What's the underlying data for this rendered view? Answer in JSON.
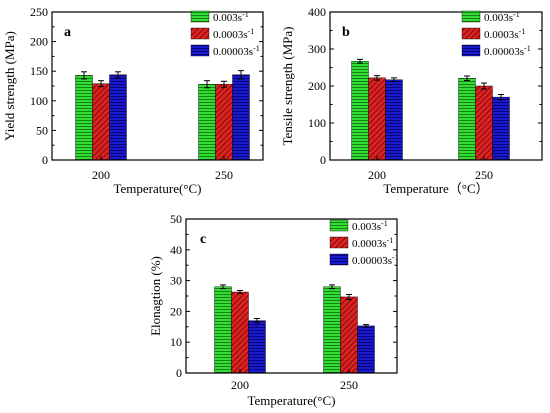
{
  "figure": {
    "legend_swatch_colors": [
      "#33dd33",
      "#dd2222",
      "#1a1acc"
    ],
    "legend_patterns": [
      "horizontal-lines",
      "diagonal-lines",
      "horizontal-lines"
    ]
  },
  "chart_data": [
    {
      "type": "bar",
      "panel_label": "a",
      "categories": [
        "200",
        "250"
      ],
      "xlabel": "Temperature(°C)",
      "ylabel": "Yield strength (MPa)",
      "ylim": [
        0,
        250
      ],
      "yticks": [
        0,
        50,
        100,
        150,
        200,
        250
      ],
      "legend_position": "top-right",
      "series": [
        {
          "name": "0.003s",
          "name_sup": "-1",
          "values": [
            143,
            128
          ],
          "errors": [
            6,
            6
          ],
          "color": "#33dd33"
        },
        {
          "name": "0.0003s",
          "name_sup": "-1",
          "values": [
            129,
            128
          ],
          "errors": [
            5,
            5
          ],
          "color": "#dd2222"
        },
        {
          "name": "0.00003s",
          "name_sup": "-1",
          "values": [
            144,
            144
          ],
          "errors": [
            5,
            7
          ],
          "color": "#1a1acc"
        }
      ]
    },
    {
      "type": "bar",
      "panel_label": "b",
      "categories": [
        "200",
        "250"
      ],
      "xlabel": "Temperature（°C）",
      "ylabel": "Tensile strength (MPa)",
      "ylim": [
        0,
        400
      ],
      "yticks": [
        0,
        100,
        200,
        300,
        400
      ],
      "legend_position": "top-right",
      "series": [
        {
          "name": "0.003s",
          "name_sup": "-1",
          "values": [
            267,
            221
          ],
          "errors": [
            5,
            6
          ],
          "color": "#33dd33"
        },
        {
          "name": "0.0003s",
          "name_sup": "-1",
          "values": [
            222,
            200
          ],
          "errors": [
            6,
            8
          ],
          "color": "#dd2222"
        },
        {
          "name": "0.00003s",
          "name_sup": "-1",
          "values": [
            217,
            170
          ],
          "errors": [
            5,
            7
          ],
          "color": "#1a1acc"
        }
      ]
    },
    {
      "type": "bar",
      "panel_label": "c",
      "categories": [
        "200",
        "250"
      ],
      "xlabel": "Temperature(°C)",
      "ylabel": "Elonagtion (%)",
      "ylim": [
        0,
        50
      ],
      "yticks": [
        0,
        10,
        20,
        30,
        40,
        50
      ],
      "legend_position": "top-right",
      "series": [
        {
          "name": "0.003s",
          "name_sup": "-1",
          "values": [
            28,
            28
          ],
          "errors": [
            0.6,
            0.6
          ],
          "color": "#33dd33"
        },
        {
          "name": "0.0003s",
          "name_sup": "-1",
          "values": [
            26.3,
            24.7
          ],
          "errors": [
            0.5,
            0.8
          ],
          "color": "#dd2222"
        },
        {
          "name": "0.00003s",
          "name_sup": "-1",
          "values": [
            17,
            15.3
          ],
          "errors": [
            0.7,
            0.4
          ],
          "color": "#1a1acc"
        }
      ]
    }
  ]
}
